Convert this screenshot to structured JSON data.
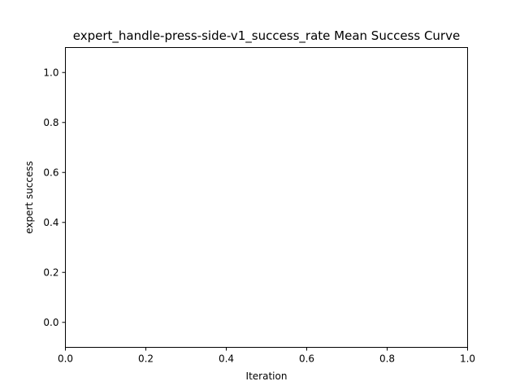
{
  "chart_data": {
    "type": "line",
    "title": "expert_handle-press-side-v1_success_rate Mean Success Curve",
    "xlabel": "Iteration",
    "ylabel": "expert success",
    "xlim": [
      0.0,
      1.0
    ],
    "ylim": [
      -0.1,
      1.1
    ],
    "xticks": [
      "0.0",
      "0.2",
      "0.4",
      "0.6",
      "0.8",
      "1.0"
    ],
    "yticks": [
      "0.0",
      "0.2",
      "0.4",
      "0.6",
      "0.8",
      "1.0"
    ],
    "series": [],
    "grid": false,
    "legend": "none"
  }
}
